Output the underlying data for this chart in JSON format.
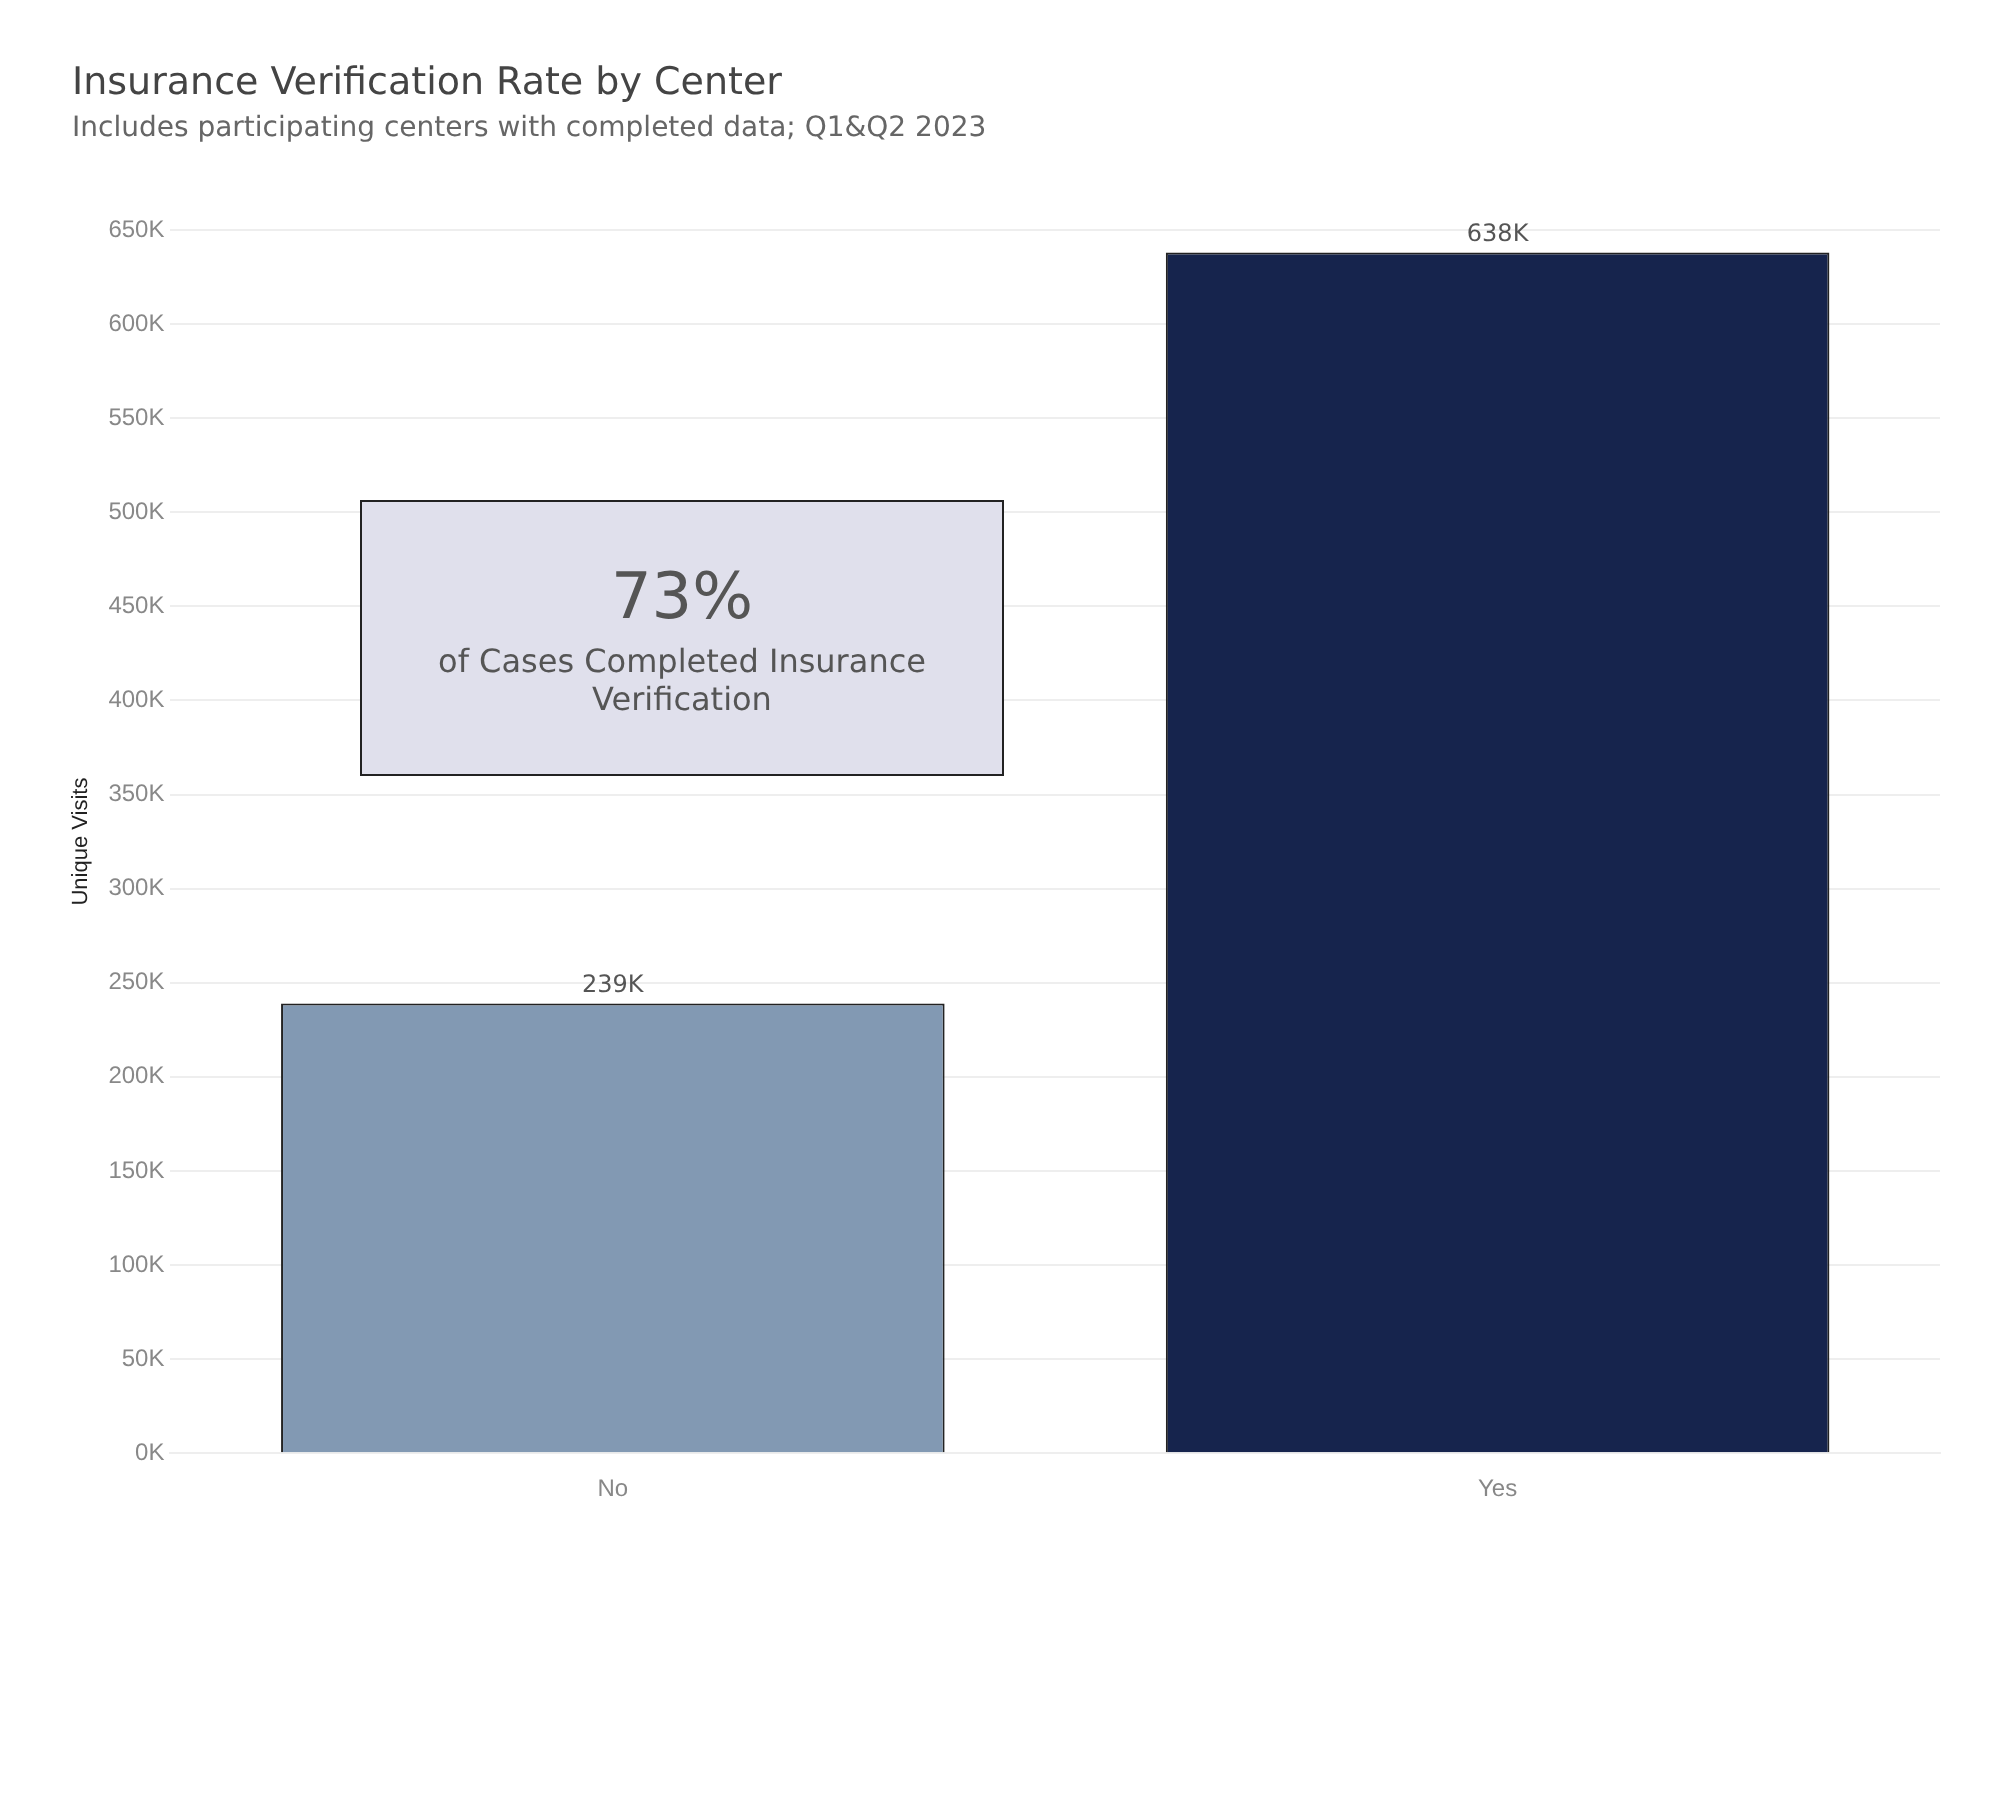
{
  "chart_data": {
    "type": "bar",
    "title": "Insurance Verification Rate by Center",
    "subtitle": "Includes participating centers with completed data; Q1&Q2 2023",
    "ylabel": "Unique Visits",
    "categories": [
      "No",
      "Yes"
    ],
    "values": [
      239000,
      638000
    ],
    "colors": [
      "#8299b3",
      "#16244d"
    ],
    "value_labels": [
      "239K",
      "638K"
    ],
    "ylim": [
      0,
      650000
    ],
    "yticks": [
      {
        "value": 0,
        "label": "0K"
      },
      {
        "value": 50000,
        "label": "50K"
      },
      {
        "value": 100000,
        "label": "100K"
      },
      {
        "value": 150000,
        "label": "150K"
      },
      {
        "value": 200000,
        "label": "200K"
      },
      {
        "value": 250000,
        "label": "250K"
      },
      {
        "value": 300000,
        "label": "300K"
      },
      {
        "value": 350000,
        "label": "350K"
      },
      {
        "value": 400000,
        "label": "400K"
      },
      {
        "value": 450000,
        "label": "450K"
      },
      {
        "value": 500000,
        "label": "500K"
      },
      {
        "value": 550000,
        "label": "550K"
      },
      {
        "value": 600000,
        "label": "600K"
      },
      {
        "value": 650000,
        "label": "650K"
      }
    ],
    "grid": "y",
    "annotations": [
      "73%",
      "of Cases Completed Insurance Verification"
    ]
  }
}
